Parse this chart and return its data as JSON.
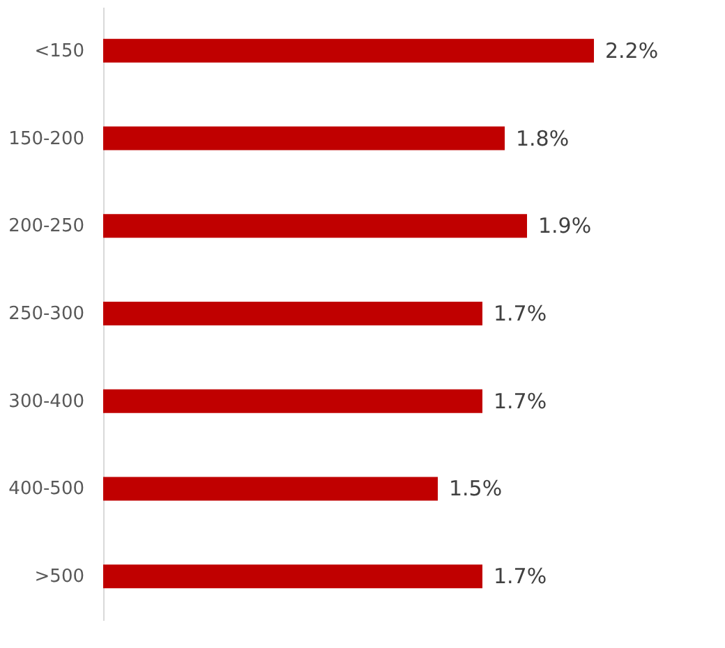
{
  "chart_data": {
    "type": "bar",
    "orientation": "horizontal",
    "categories": [
      "<150",
      "150-200",
      "200-250",
      "250-300",
      "300-400",
      "400-500",
      ">500"
    ],
    "values": [
      2.2,
      1.8,
      1.9,
      1.7,
      1.7,
      1.5,
      1.7
    ],
    "value_labels": [
      "2.2%",
      "1.8%",
      "1.9%",
      "1.7%",
      "1.7%",
      "1.5%",
      "1.7%"
    ],
    "color": "#c00000",
    "tick_labels": "y"
  }
}
